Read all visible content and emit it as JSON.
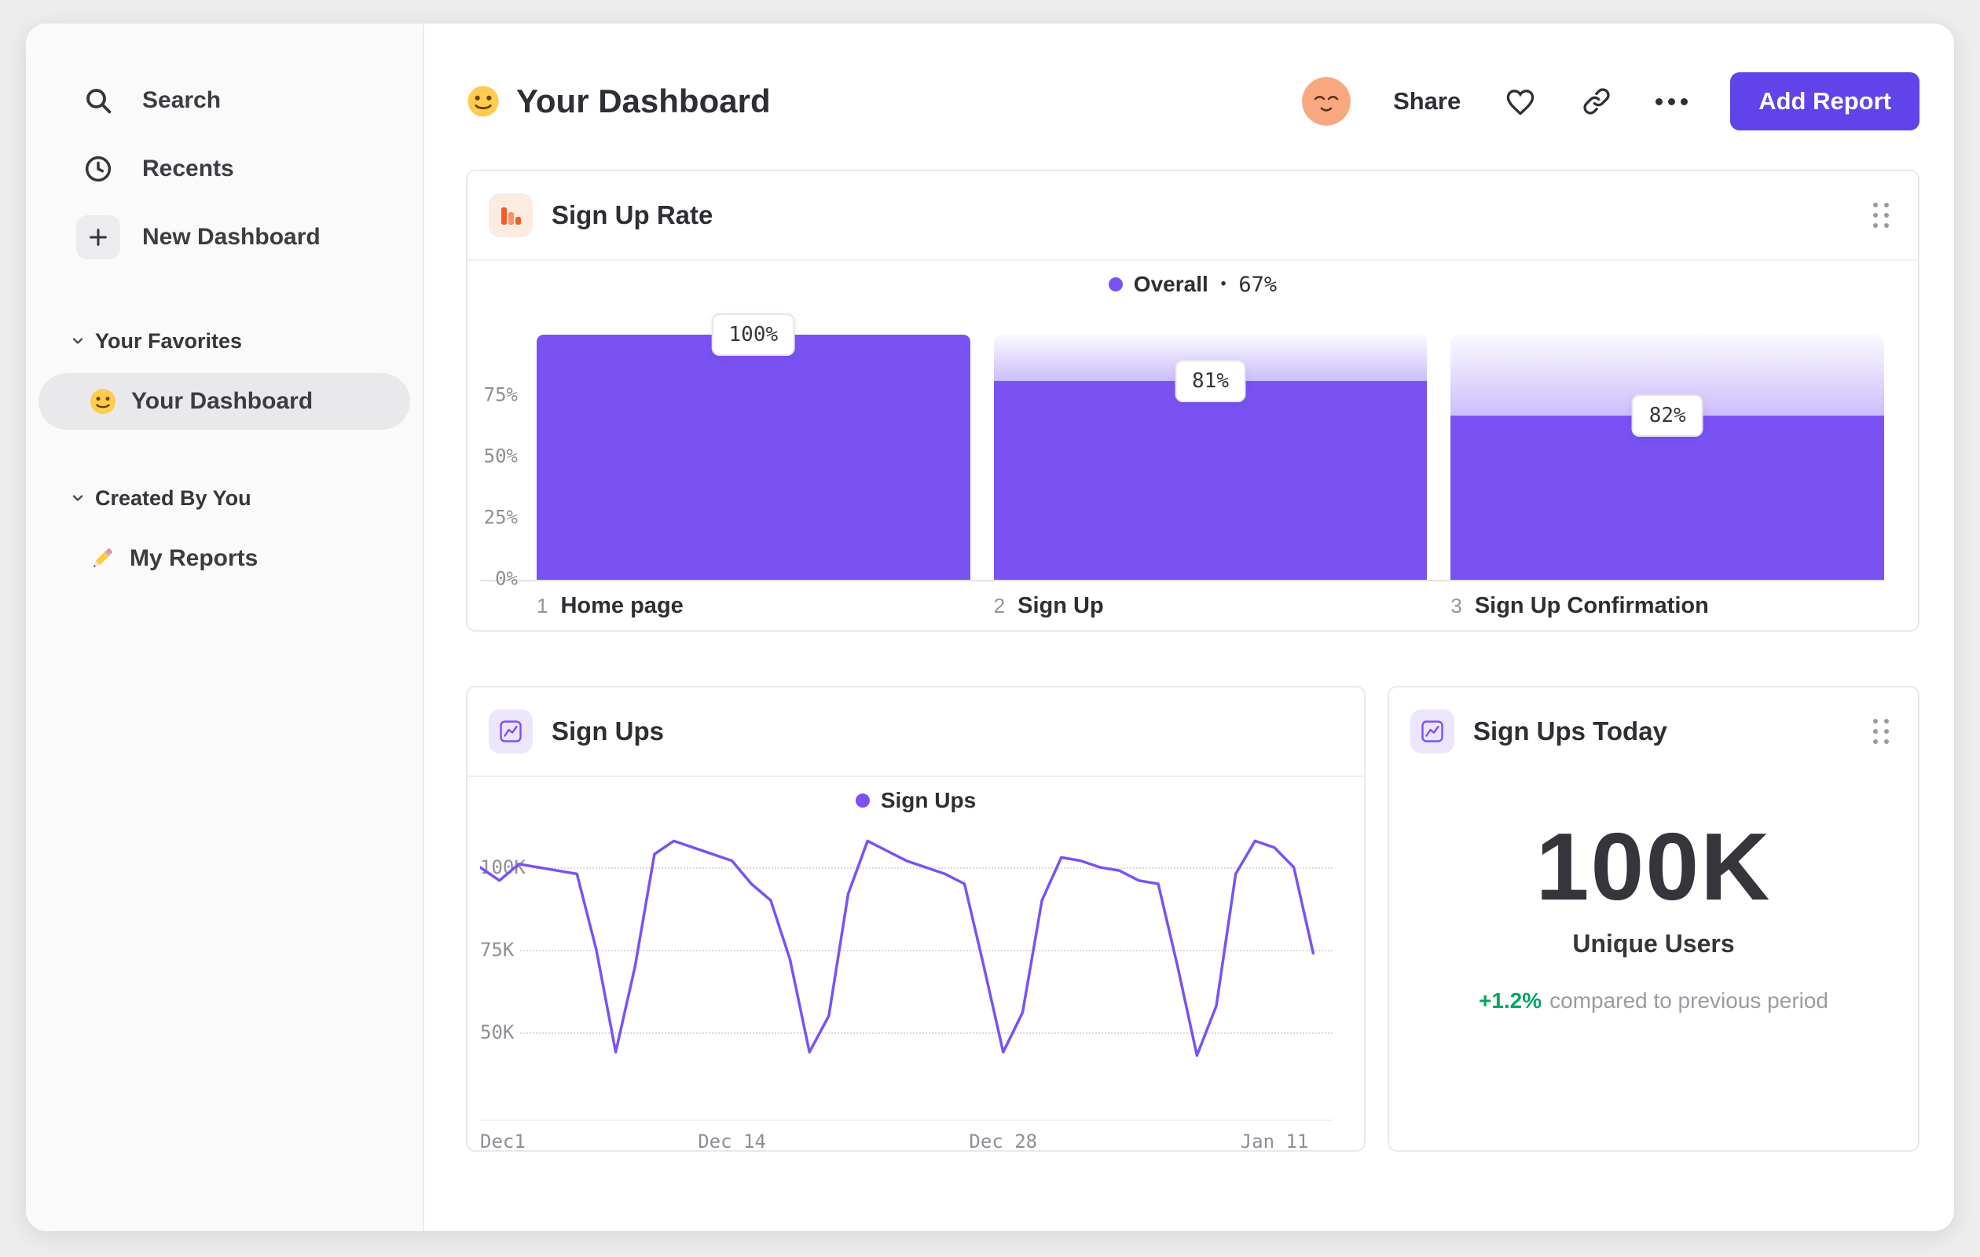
{
  "colors": {
    "accent_purple": "#7A52F4",
    "button_purple": "#6143EA",
    "icon_orange": "#F25C27",
    "positive_green": "#00A562",
    "avatar_orange": "#F8A87E"
  },
  "sidebar": {
    "items": [
      {
        "label": "Search",
        "icon": "search-icon"
      },
      {
        "label": "Recents",
        "icon": "clock-icon"
      },
      {
        "label": "New Dashboard",
        "icon": "plus-icon"
      }
    ],
    "sections": [
      {
        "title": "Your Favorites",
        "icon": "chevron-down-icon",
        "items": [
          {
            "label": "Your Dashboard",
            "icon": "smiley-emoji",
            "selected": true
          }
        ]
      },
      {
        "title": "Created By You",
        "icon": "chevron-down-icon",
        "items": [
          {
            "label": "My Reports",
            "icon": "pencil-emoji",
            "selected": false
          }
        ]
      }
    ]
  },
  "header": {
    "emoji_icon": "smiley-emoji",
    "title": "Your Dashboard",
    "avatar_icon": "relieved-face-emoji",
    "share_label": "Share",
    "action_icons": [
      "heart-icon",
      "link-icon",
      "ellipsis-icon"
    ],
    "add_report_label": "Add Report"
  },
  "cards": {
    "signup_rate": {
      "title": "Sign Up Rate",
      "icon": "funnel-chart-icon",
      "legend_label": "Overall",
      "legend_sep": "•",
      "legend_value": "67%"
    },
    "signups": {
      "title": "Sign Ups",
      "icon": "line-chart-icon",
      "legend_label": "Sign Ups"
    },
    "signups_today": {
      "title": "Sign Ups Today",
      "icon": "line-chart-icon",
      "value": "100K",
      "unit_label": "Unique Users",
      "delta": "+1.2%",
      "delta_note": "compared to previous period"
    }
  },
  "chart_data": [
    {
      "type": "bar",
      "subtype": "funnel",
      "title": "Sign Up Rate",
      "legend": [
        {
          "label": "Overall",
          "value": "67%"
        }
      ],
      "step_numbers": [
        "1",
        "2",
        "3"
      ],
      "categories": [
        "Home page",
        "Sign Up",
        "Sign Up Confirmation"
      ],
      "values": [
        100,
        81,
        82
      ],
      "value_labels": [
        "100%",
        "81%",
        "82%"
      ],
      "overall_heights_pct": [
        100,
        81,
        67
      ],
      "y_ticks": [
        {
          "value": 75,
          "label": "75%"
        },
        {
          "value": 50,
          "label": "50%"
        },
        {
          "value": 25,
          "label": "25%"
        },
        {
          "value": 0,
          "label": "0%"
        }
      ],
      "ylim": [
        0,
        100
      ],
      "bar_color": "#7A52F4",
      "grid": false,
      "legend_position": "top-center"
    },
    {
      "type": "line",
      "title": "Sign Ups",
      "legend": [
        "Sign Ups"
      ],
      "unit": "K users per day",
      "x_ticks": [
        {
          "day": 0,
          "label": "Dec1"
        },
        {
          "day": 13,
          "label": "Dec 14"
        },
        {
          "day": 27,
          "label": "Dec 28"
        },
        {
          "day": 41,
          "label": "Jan 11"
        }
      ],
      "y_ticks": [
        {
          "value": 100,
          "label": "100K"
        },
        {
          "value": 75,
          "label": "75K"
        },
        {
          "value": 50,
          "label": "50K"
        }
      ],
      "ylim_k": [
        32,
        112
      ],
      "total_days": 44,
      "values_k": [
        100,
        96,
        101,
        100,
        99,
        98,
        75,
        44,
        70,
        104,
        108,
        106,
        104,
        102,
        95,
        90,
        72,
        44,
        55,
        92,
        108,
        105,
        102,
        100,
        98,
        95,
        70,
        44,
        56,
        90,
        103,
        102,
        100,
        99,
        96,
        95,
        70,
        43,
        58,
        98,
        108,
        106,
        100,
        74
      ],
      "line_color": "#7A52F4",
      "grid": "dotted-horizontal",
      "legend_position": "top-center"
    },
    {
      "type": "kpi",
      "title": "Sign Ups Today",
      "value": "100K",
      "label": "Unique Users",
      "delta": "+1.2%",
      "delta_direction": "up",
      "delta_note": "compared to previous period"
    }
  ]
}
